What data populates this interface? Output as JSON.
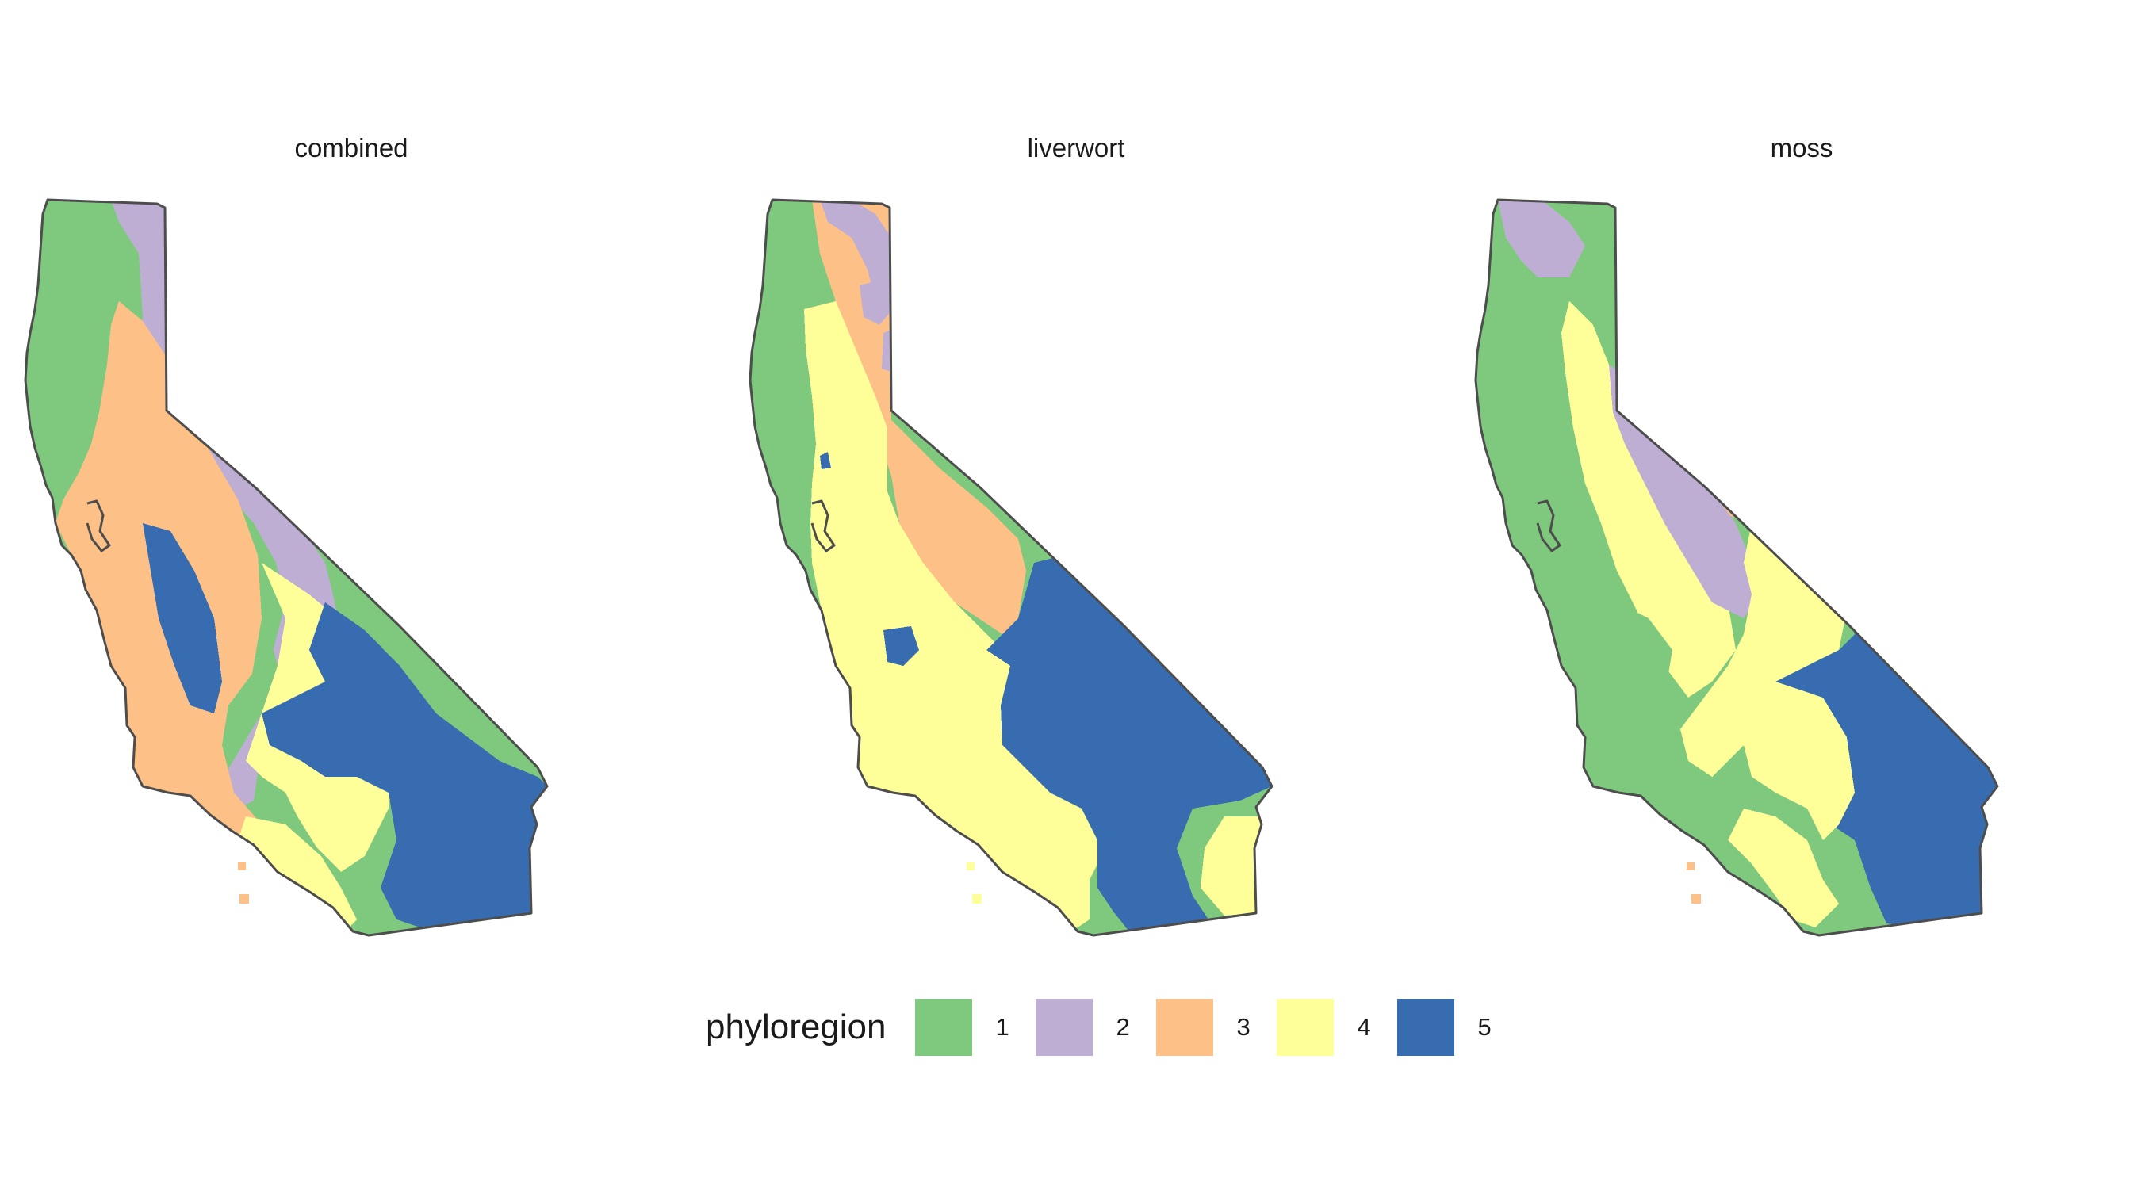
{
  "panels": [
    {
      "title": "combined"
    },
    {
      "title": "liverwort"
    },
    {
      "title": "moss"
    }
  ],
  "legend": {
    "title": "phyloregion",
    "items": [
      {
        "label": "1",
        "color": "#7fc97f"
      },
      {
        "label": "2",
        "color": "#beaed4"
      },
      {
        "label": "3",
        "color": "#fdc086"
      },
      {
        "label": "4",
        "color": "#ffff99"
      },
      {
        "label": "5",
        "color": "#386cb0"
      }
    ]
  },
  "outline_color": "#4d4d4d"
}
